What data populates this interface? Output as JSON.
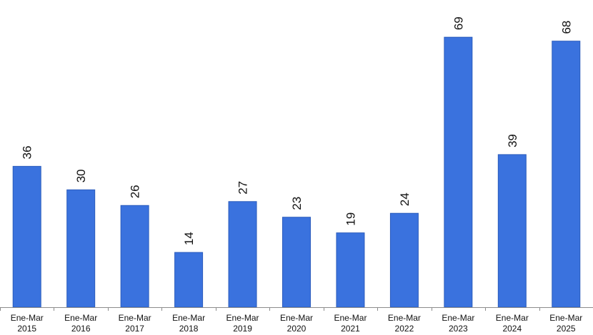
{
  "chart_data": {
    "type": "bar",
    "title": "",
    "xlabel": "",
    "ylabel": "",
    "ylim": [
      0,
      70
    ],
    "grid": false,
    "legend": "none",
    "bar_color": "#3a72de",
    "categories": [
      [
        "Ene-Mar",
        "2015"
      ],
      [
        "Ene-Mar",
        "2016"
      ],
      [
        "Ene-Mar",
        "2017"
      ],
      [
        "Ene-Mar",
        "2018"
      ],
      [
        "Ene-Mar",
        "2019"
      ],
      [
        "Ene-Mar",
        "2020"
      ],
      [
        "Ene-Mar",
        "2021"
      ],
      [
        "Ene-Mar",
        "2022"
      ],
      [
        "Ene-Mar",
        "2023"
      ],
      [
        "Ene-Mar",
        "2024"
      ],
      [
        "Ene-Mar",
        "2025"
      ]
    ],
    "values": [
      36,
      30,
      26,
      14,
      27,
      23,
      19,
      24,
      69,
      39,
      68
    ]
  }
}
